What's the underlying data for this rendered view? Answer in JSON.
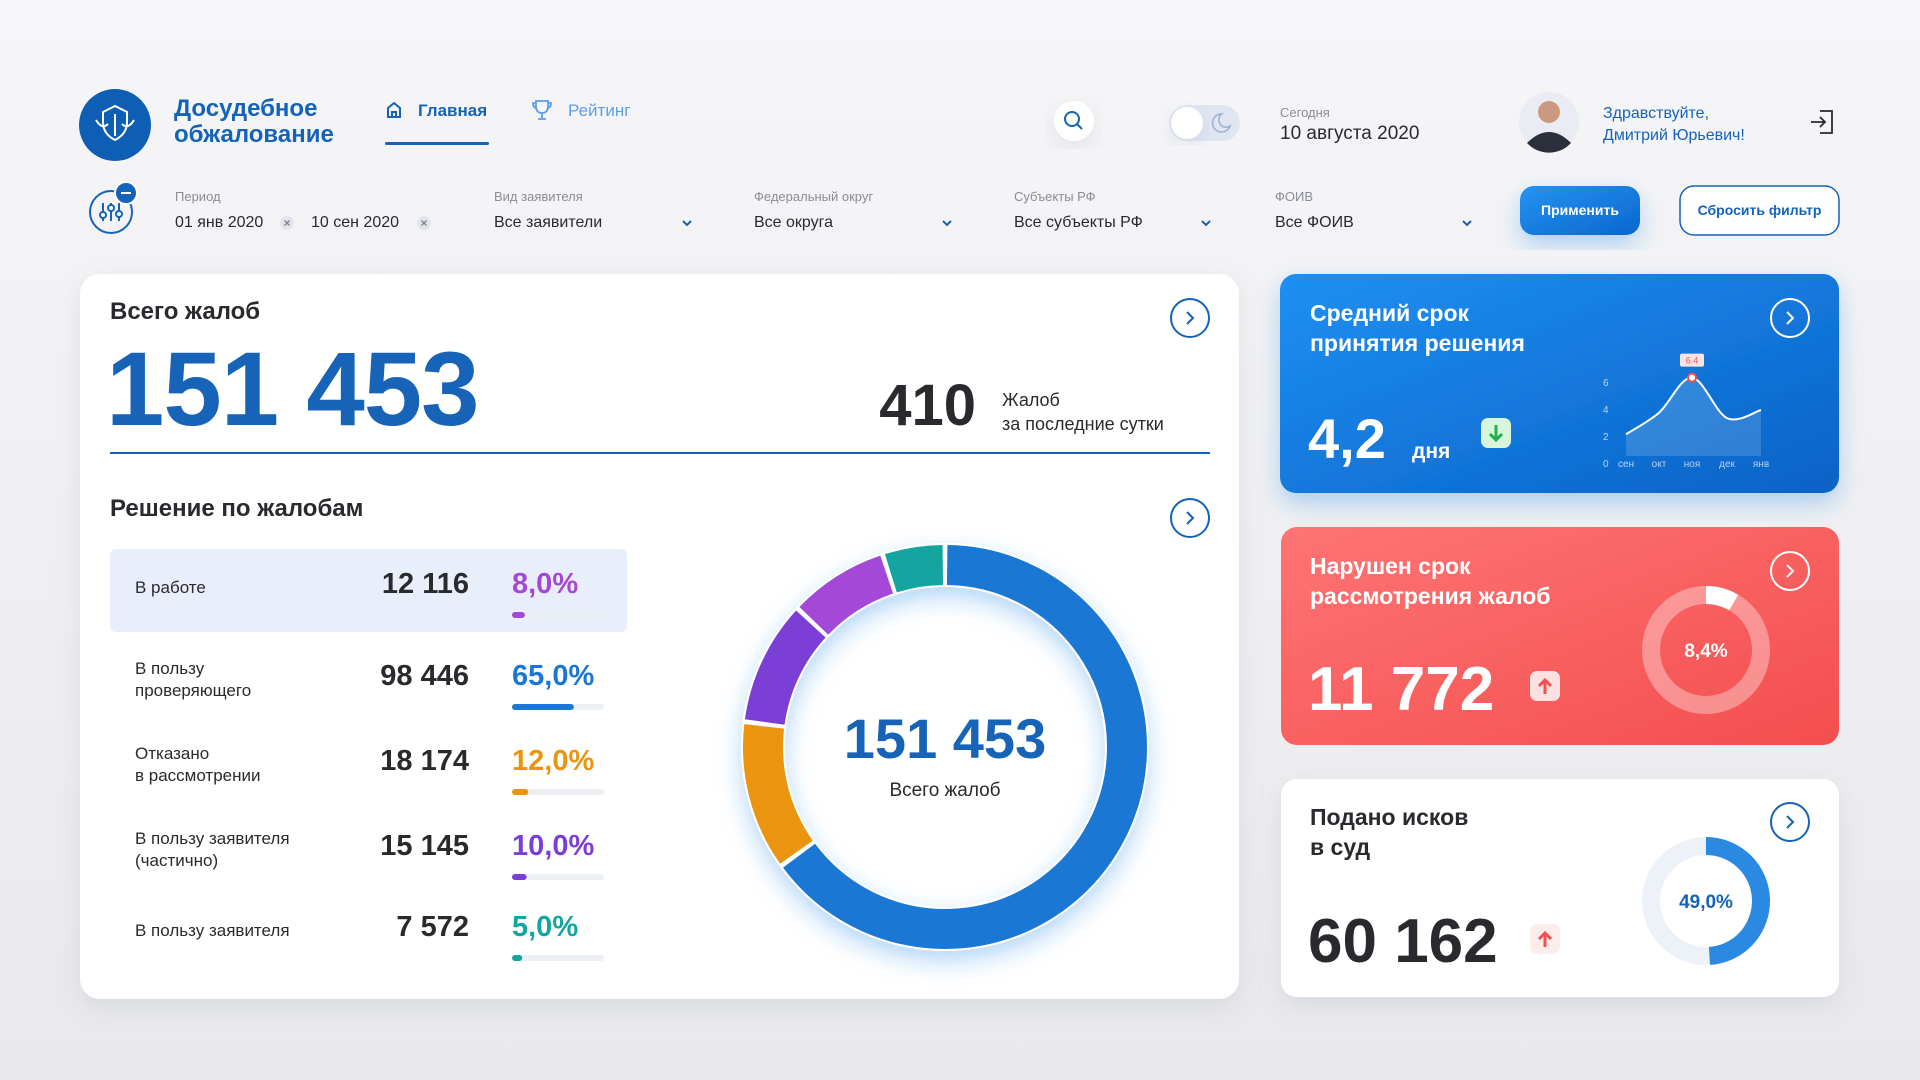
{
  "header": {
    "brand": "Досудебное\nобжалование",
    "nav": [
      "Главная",
      "Рейтинг"
    ],
    "date_label": "Сегодня",
    "date": "10 августа 2020",
    "greeting": "Здравствуйте,\nДмитрий Юрьевич!"
  },
  "filters": {
    "period_label": "Период",
    "period_from": "01 янв 2020",
    "period_to": "10 сен 2020",
    "selects": [
      {
        "label": "Вид заявителя",
        "value": "Все заявители"
      },
      {
        "label": "Федеральный округ",
        "value": "Все округа"
      },
      {
        "label": "Субъекты РФ",
        "value": "Все субъекты РФ"
      },
      {
        "label": "ФОИВ",
        "value": "Все ФОИВ"
      }
    ],
    "apply": "Применить",
    "reset": "Сбросить фильтр"
  },
  "total": {
    "title": "Всего жалоб",
    "value": "151 453",
    "recent_value": "410",
    "recent_label": "Жалоб\nза последние сутки"
  },
  "decisions": {
    "title": "Решение по жалобам",
    "items": [
      {
        "label": "В работе",
        "count": "12 116",
        "share": 8.0,
        "share_label": "8,0%",
        "color": "#a448d8"
      },
      {
        "label": "В пользу\nпроверяющего",
        "count": "98 446",
        "share": 65.0,
        "share_label": "65,0%",
        "color": "#1a78d4"
      },
      {
        "label": "Отказано\nв рассмотрении",
        "count": "18 174",
        "share": 12.0,
        "share_label": "12,0%",
        "color": "#eb940f"
      },
      {
        "label": "В пользу заявителя\n(частично)",
        "count": "15 145",
        "share": 10.0,
        "share_label": "10,0%",
        "color": "#7b3fd6"
      },
      {
        "label": "В пользу заявителя",
        "count": "7 572",
        "share": 5.0,
        "share_label": "5,0%",
        "color": "#15a5a1"
      }
    ]
  },
  "cards": [
    {
      "title": "Средний срок\nпринятия решения",
      "value": "4,2",
      "unit": "дня",
      "trend": {
        "categories": [
          "сен",
          "окт",
          "ноя",
          "дек",
          "янв"
        ],
        "values": [
          2.2,
          3.8,
          6.4,
          3.4,
          4.0
        ],
        "ylim": [
          0,
          6
        ],
        "yticks": [
          0,
          2,
          4,
          6
        ]
      }
    },
    {
      "title": "Нарушен срок\nрассмотрения жалоб",
      "value": "11 772",
      "share": 8.4,
      "share_label": "8,4%"
    },
    {
      "title": "Подано исков\nв суд",
      "value": "60 162",
      "share": 49.0,
      "share_label": "49,0%"
    }
  ]
}
